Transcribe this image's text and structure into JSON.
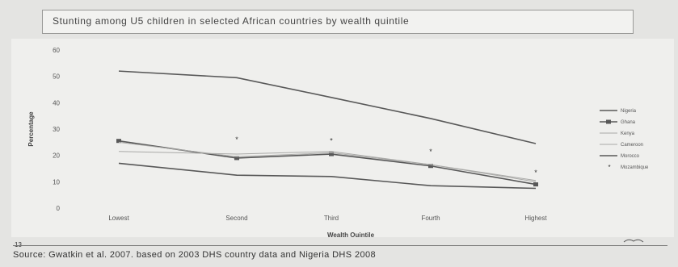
{
  "page_number": "13",
  "source": "Source: Gwatkin et al. 2007. based on 2003 DHS country data and Nigeria DHS 2008",
  "colors": {
    "lines": "#585858",
    "grid": "#c9c9c7",
    "background": "#efefed"
  },
  "chart_data": {
    "type": "line",
    "title": "Stunting among U5 children in selected  African countries by wealth quintile",
    "xlabel": "Wealth Quintile",
    "ylabel": "Percentage",
    "ylim": [
      0,
      60
    ],
    "yticks": [
      "60",
      "50",
      "40",
      "30",
      "20",
      "10",
      "0"
    ],
    "categories": [
      "Lowest",
      "Second",
      "Third",
      "Fourth",
      "Highest"
    ],
    "grid": false,
    "legend_position": "right",
    "series": [
      {
        "name": "Nigeria",
        "values": [
          52,
          49.5,
          42,
          34,
          24.5
        ],
        "style": "line"
      },
      {
        "name": "Ghana",
        "values": [
          25.5,
          19,
          20.5,
          16,
          9
        ],
        "style": "line-square"
      },
      {
        "name": "Kenya",
        "values": [
          21.5,
          20.5,
          21.5,
          16.5,
          10.5
        ],
        "style": "line-light"
      },
      {
        "name": "Cameroon",
        "values": [
          25,
          19.5,
          21,
          16.5,
          10
        ],
        "style": "line-light"
      },
      {
        "name": "Morocco",
        "values": [
          17,
          12.5,
          12,
          8.5,
          7.5
        ],
        "style": "line"
      },
      {
        "name": "Mozambique",
        "values": [
          null,
          26,
          25.5,
          21.5,
          13.5
        ],
        "style": "star"
      }
    ]
  }
}
